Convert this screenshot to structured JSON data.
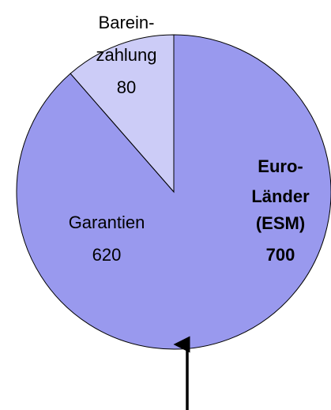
{
  "chart_data": {
    "type": "pie",
    "categories": [
      [
        "Barein-",
        "zahlung"
      ],
      [
        "Garantien"
      ]
    ],
    "values": [
      80,
      620
    ],
    "colors": [
      "#ccccf7",
      "#9999ee"
    ],
    "annotation": {
      "lines": [
        "Euro-",
        "Länder",
        "(ESM)"
      ],
      "value": 700
    }
  }
}
